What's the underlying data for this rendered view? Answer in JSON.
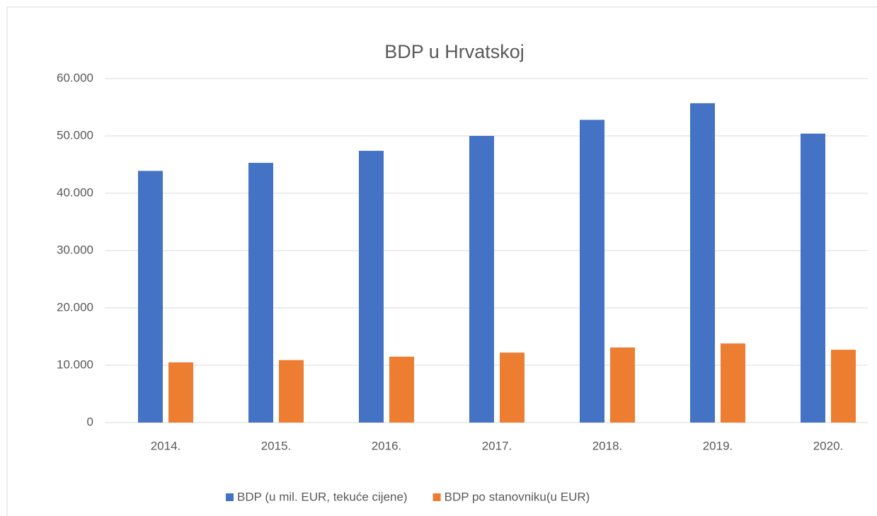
{
  "chart_data": {
    "type": "bar",
    "title": "BDP u Hrvatskoj",
    "categories": [
      "2014.",
      "2015.",
      "2016.",
      "2017.",
      "2018.",
      "2019.",
      "2020."
    ],
    "series": [
      {
        "name": "BDP (u mil. EUR, tekuće cijene)",
        "color": "#4472c4",
        "values": [
          43900,
          45300,
          47400,
          50000,
          52800,
          55700,
          50400
        ]
      },
      {
        "name": "BDP po stanovniku(u EUR)",
        "color": "#ed7d31",
        "values": [
          10500,
          10900,
          11500,
          12200,
          13100,
          13800,
          12700
        ]
      }
    ],
    "ylim": [
      0,
      60000
    ],
    "yticks": [
      0,
      {
        "value": 10000,
        "label": "10.000"
      },
      {
        "value": 20000,
        "label": "20.000"
      },
      {
        "value": 30000,
        "label": "30.000"
      },
      {
        "value": 40000,
        "label": "40.000"
      },
      {
        "value": 50000,
        "label": "50.000"
      },
      {
        "value": 60000,
        "label": "60.000"
      }
    ],
    "grid": true,
    "legend": "bottom"
  }
}
